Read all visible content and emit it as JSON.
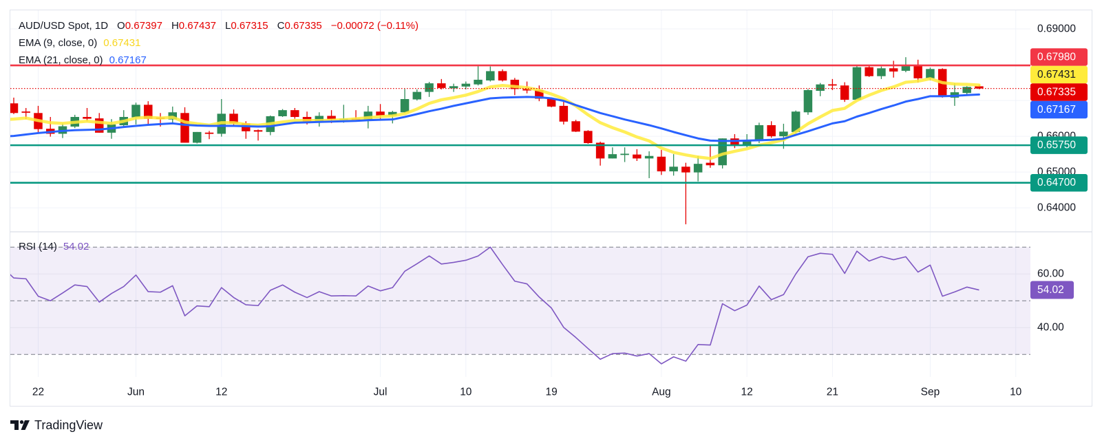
{
  "header": {
    "symbol": "AUD/USD Spot, 1D",
    "ohlc": [
      {
        "key": "O",
        "value": "0.67397"
      },
      {
        "key": "H",
        "value": "0.67437"
      },
      {
        "key": "L",
        "value": "0.67315"
      },
      {
        "key": "C",
        "value": "0.67335"
      }
    ],
    "change": "−0.00072 (−0.11%)"
  },
  "branding": {
    "logo_text": "TradingView",
    "logo_icon": "tradingview-logo-icon"
  },
  "colors": {
    "up": "#2E8B57",
    "down": "#E50000",
    "ema9": "#FFEB3B",
    "ema21": "#2962FF",
    "resistance": "#F23645",
    "support": "#089981",
    "rsi": "#7E57C2",
    "grid": "#F0F3FA",
    "band_line": "#787B86"
  },
  "chart_data": [
    {
      "type": "candlestick",
      "xlim": [
        -2.28,
        81.2
      ],
      "ylim": [
        0.6333,
        0.6952
      ],
      "grid": true,
      "gridlines": [
        0.64,
        0.65,
        0.66,
        0.67,
        0.68,
        0.69
      ],
      "y_tick_labels": [
        {
          "value": 0.69,
          "label": "0.69000"
        },
        {
          "value": 0.66,
          "label": "0.66000"
        },
        {
          "value": 0.65,
          "label": "0.65000"
        },
        {
          "value": 0.64,
          "label": "0.64000"
        }
      ],
      "x_ticks": [
        {
          "bar": 0,
          "label": "22"
        },
        {
          "bar": 8,
          "label": "Jun"
        },
        {
          "bar": 15,
          "label": "12"
        },
        {
          "bar": 28,
          "label": "Jul"
        },
        {
          "bar": 35,
          "label": "10"
        },
        {
          "bar": 42,
          "label": "19"
        },
        {
          "bar": 51,
          "label": "Aug"
        },
        {
          "bar": 58,
          "label": "12"
        },
        {
          "bar": 65,
          "label": "21"
        },
        {
          "bar": 73,
          "label": "Sep"
        },
        {
          "bar": 80,
          "label": "10"
        }
      ],
      "first_bar": -2,
      "candles": [
        [
          0.6692,
          0.6708,
          0.6662,
          0.6665
        ],
        [
          0.6668,
          0.6679,
          0.6648,
          0.6667
        ],
        [
          0.6665,
          0.6685,
          0.6609,
          0.662
        ],
        [
          0.6621,
          0.6654,
          0.6599,
          0.6607
        ],
        [
          0.6607,
          0.6636,
          0.6595,
          0.6628
        ],
        [
          0.6627,
          0.666,
          0.6623,
          0.6654
        ],
        [
          0.6654,
          0.6679,
          0.6642,
          0.6649
        ],
        [
          0.665,
          0.6665,
          0.661,
          0.661
        ],
        [
          0.661,
          0.6648,
          0.6593,
          0.6633
        ],
        [
          0.6631,
          0.6673,
          0.6628,
          0.6654
        ],
        [
          0.6653,
          0.6694,
          0.6633,
          0.6688
        ],
        [
          0.6688,
          0.6698,
          0.6633,
          0.6649
        ],
        [
          0.6651,
          0.6665,
          0.6627,
          0.665
        ],
        [
          0.6647,
          0.6683,
          0.6636,
          0.6667
        ],
        [
          0.6665,
          0.6681,
          0.6582,
          0.6582
        ],
        [
          0.6582,
          0.6612,
          0.658,
          0.6612
        ],
        [
          0.6609,
          0.6615,
          0.6592,
          0.6608
        ],
        [
          0.6607,
          0.6704,
          0.6599,
          0.6663
        ],
        [
          0.6663,
          0.6675,
          0.6628,
          0.6636
        ],
        [
          0.6636,
          0.6642,
          0.6593,
          0.6614
        ],
        [
          0.6617,
          0.6619,
          0.6588,
          0.6613
        ],
        [
          0.6612,
          0.6658,
          0.6603,
          0.6656
        ],
        [
          0.6656,
          0.6676,
          0.6654,
          0.6673
        ],
        [
          0.6673,
          0.6679,
          0.6649,
          0.6654
        ],
        [
          0.6654,
          0.6669,
          0.6633,
          0.6641
        ],
        [
          0.6641,
          0.6667,
          0.6627,
          0.6657
        ],
        [
          0.6657,
          0.6673,
          0.6637,
          0.6647
        ],
        [
          0.6647,
          0.6688,
          0.6638,
          0.6648
        ],
        [
          0.6648,
          0.6673,
          0.6641,
          0.6647
        ],
        [
          0.6647,
          0.6685,
          0.6622,
          0.6669
        ],
        [
          0.6669,
          0.669,
          0.6644,
          0.6658
        ],
        [
          0.6658,
          0.6671,
          0.6636,
          0.6668
        ],
        [
          0.6667,
          0.6732,
          0.6665,
          0.6704
        ],
        [
          0.6703,
          0.6731,
          0.67,
          0.6724
        ],
        [
          0.6724,
          0.6752,
          0.671,
          0.6748
        ],
        [
          0.6748,
          0.676,
          0.6731,
          0.6735
        ],
        [
          0.6734,
          0.6747,
          0.6724,
          0.674
        ],
        [
          0.6739,
          0.6753,
          0.6731,
          0.6747
        ],
        [
          0.6745,
          0.6796,
          0.6742,
          0.6758
        ],
        [
          0.6756,
          0.6795,
          0.6753,
          0.6782
        ],
        [
          0.6782,
          0.6787,
          0.6753,
          0.6756
        ],
        [
          0.6758,
          0.6763,
          0.6715,
          0.6732
        ],
        [
          0.6732,
          0.6753,
          0.672,
          0.6728
        ],
        [
          0.6729,
          0.6742,
          0.6698,
          0.6705
        ],
        [
          0.6706,
          0.6708,
          0.6681,
          0.6683
        ],
        [
          0.6685,
          0.6702,
          0.6633,
          0.6641
        ],
        [
          0.6642,
          0.6646,
          0.6612,
          0.6613
        ],
        [
          0.6615,
          0.6617,
          0.6579,
          0.6581
        ],
        [
          0.6582,
          0.6585,
          0.6518,
          0.6538
        ],
        [
          0.6538,
          0.6569,
          0.6538,
          0.655
        ],
        [
          0.6549,
          0.6569,
          0.6528,
          0.655
        ],
        [
          0.6549,
          0.6564,
          0.6531,
          0.6538
        ],
        [
          0.6538,
          0.6558,
          0.6483,
          0.6545
        ],
        [
          0.6543,
          0.6562,
          0.6492,
          0.6502
        ],
        [
          0.6502,
          0.655,
          0.649,
          0.6515
        ],
        [
          0.6515,
          0.6526,
          0.6354,
          0.6499
        ],
        [
          0.6499,
          0.6545,
          0.6474,
          0.6523
        ],
        [
          0.6526,
          0.6577,
          0.6512,
          0.6519
        ],
        [
          0.6519,
          0.6594,
          0.651,
          0.6594
        ],
        [
          0.6594,
          0.6606,
          0.6567,
          0.6576
        ],
        [
          0.6576,
          0.6606,
          0.6569,
          0.6588
        ],
        [
          0.6587,
          0.6638,
          0.6581,
          0.6631
        ],
        [
          0.6631,
          0.6642,
          0.6596,
          0.66
        ],
        [
          0.66,
          0.6635,
          0.6565,
          0.6613
        ],
        [
          0.6612,
          0.6672,
          0.6608,
          0.6669
        ],
        [
          0.6667,
          0.6732,
          0.666,
          0.6729
        ],
        [
          0.6727,
          0.6749,
          0.6712,
          0.6745
        ],
        [
          0.6744,
          0.676,
          0.6729,
          0.6743
        ],
        [
          0.6742,
          0.6751,
          0.6696,
          0.6702
        ],
        [
          0.6702,
          0.6796,
          0.6702,
          0.6793
        ],
        [
          0.6793,
          0.6796,
          0.6766,
          0.6768
        ],
        [
          0.6768,
          0.6795,
          0.676,
          0.679
        ],
        [
          0.679,
          0.6811,
          0.6764,
          0.6781
        ],
        [
          0.6783,
          0.6821,
          0.6779,
          0.6796
        ],
        [
          0.6796,
          0.6814,
          0.675,
          0.6762
        ],
        [
          0.6762,
          0.6792,
          0.6756,
          0.6788
        ],
        [
          0.6788,
          0.679,
          0.6708,
          0.671
        ],
        [
          0.6708,
          0.6748,
          0.6685,
          0.6723
        ],
        [
          0.6721,
          0.674,
          0.6715,
          0.6738
        ],
        [
          0.67397,
          0.67437,
          0.67315,
          0.67335
        ]
      ],
      "series": [
        {
          "name": "EMA (9, close, 0)",
          "color": "#FFEB3B",
          "label_text_color": "#131722",
          "last_label": "0.67431",
          "first_bar": -3,
          "values": [
            0.6646,
            0.6648,
            0.6651,
            0.6644,
            0.6638,
            0.6636,
            0.6639,
            0.6642,
            0.6639,
            0.6636,
            0.6642,
            0.6651,
            0.6653,
            0.6651,
            0.6653,
            0.664,
            0.6635,
            0.6631,
            0.6638,
            0.6638,
            0.6633,
            0.6631,
            0.6635,
            0.664,
            0.6644,
            0.6644,
            0.6644,
            0.6645,
            0.6646,
            0.6649,
            0.6652,
            0.6655,
            0.6657,
            0.6663,
            0.6676,
            0.6692,
            0.6702,
            0.6708,
            0.6715,
            0.6725,
            0.6738,
            0.6742,
            0.6739,
            0.6736,
            0.6729,
            0.6718,
            0.6705,
            0.6685,
            0.666,
            0.6638,
            0.6624,
            0.6612,
            0.6598,
            0.6587,
            0.6567,
            0.6555,
            0.6548,
            0.6542,
            0.6538,
            0.655,
            0.6558,
            0.6565,
            0.6575,
            0.6582,
            0.659,
            0.6612,
            0.6635,
            0.6654,
            0.6672,
            0.6678,
            0.67,
            0.6715,
            0.6728,
            0.6738,
            0.6751,
            0.6754,
            0.6761,
            0.675,
            0.6746,
            0.6745,
            0.67431
          ]
        },
        {
          "name": "EMA (21, close, 0)",
          "color": "#2962FF",
          "label_text_color": "#FFFFFF",
          "last_label": "0.67167",
          "first_bar": -3,
          "values": [
            0.6599,
            0.6601,
            0.6605,
            0.6609,
            0.6612,
            0.6615,
            0.6617,
            0.6618,
            0.6619,
            0.6622,
            0.6626,
            0.6629,
            0.6632,
            0.6634,
            0.6636,
            0.6632,
            0.663,
            0.6629,
            0.6629,
            0.6629,
            0.6628,
            0.6627,
            0.6628,
            0.6633,
            0.6638,
            0.6639,
            0.664,
            0.6641,
            0.6642,
            0.6643,
            0.6645,
            0.6646,
            0.6647,
            0.6654,
            0.6662,
            0.667,
            0.6677,
            0.6685,
            0.6692,
            0.6699,
            0.6706,
            0.6708,
            0.6709,
            0.671,
            0.6709,
            0.6706,
            0.6699,
            0.6687,
            0.6676,
            0.6665,
            0.6656,
            0.6647,
            0.6639,
            0.6631,
            0.6622,
            0.6612,
            0.6603,
            0.6594,
            0.6588,
            0.6587,
            0.6587,
            0.6588,
            0.6589,
            0.659,
            0.6593,
            0.6604,
            0.6614,
            0.6625,
            0.6636,
            0.6642,
            0.6655,
            0.6665,
            0.6676,
            0.6686,
            0.6697,
            0.6704,
            0.6712,
            0.6712,
            0.6713,
            0.6715,
            0.67167
          ]
        }
      ],
      "levels": [
        {
          "value": 0.6798,
          "label": "0.67980",
          "color": "#F23645"
        },
        {
          "value": 0.6575,
          "label": "0.65750",
          "color": "#089981"
        },
        {
          "value": 0.647,
          "label": "0.64700",
          "color": "#089981"
        }
      ],
      "last_price": {
        "value": 0.67335,
        "label": "0.67335",
        "color": "#E50000"
      }
    },
    {
      "type": "line",
      "name": "RSI (14)",
      "ylim": [
        21.6,
        75.7
      ],
      "bands": [
        70,
        50,
        30
      ],
      "gridlines": [
        60,
        40
      ],
      "y_tick_labels": [
        {
          "value": 60,
          "label": "60.00"
        },
        {
          "value": 40,
          "label": "40.00"
        }
      ],
      "first_bar": -3,
      "values": [
        62.8,
        58.5,
        58.2,
        51.7,
        50.0,
        52.9,
        55.9,
        55.3,
        49.5,
        52.7,
        55.3,
        59.6,
        53.4,
        53.2,
        55.6,
        44.4,
        48.1,
        47.8,
        54.9,
        51.2,
        48.5,
        48.2,
        53.9,
        55.9,
        53.2,
        51.2,
        53.4,
        51.8,
        51.9,
        51.8,
        55.5,
        53.7,
        54.9,
        61.0,
        63.8,
        66.7,
        63.7,
        64.3,
        65.1,
        66.7,
        70.0,
        63.5,
        57.3,
        56.3,
        51.4,
        47.3,
        40.1,
        36.3,
        32.2,
        28.2,
        30.3,
        30.5,
        29.4,
        30.3,
        26.5,
        29.1,
        27.5,
        33.7,
        33.5,
        48.9,
        46.3,
        48.4,
        55.5,
        50.4,
        52.3,
        60.0,
        66.4,
        67.7,
        67.3,
        60.2,
        68.5,
        64.8,
        66.5,
        65.3,
        66.4,
        60.7,
        63.3,
        51.7,
        53.3,
        55.1,
        54.02
      ],
      "last_value": {
        "value": 54.02,
        "label": "54.02"
      }
    }
  ]
}
